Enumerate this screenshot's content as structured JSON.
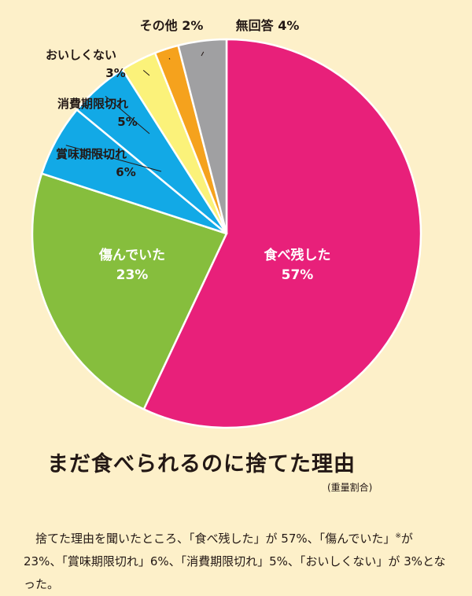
{
  "chart_data": {
    "type": "pie",
    "title": "まだ食べられるのに捨てた理由",
    "subtitle": "(重量割合)",
    "unit": "%",
    "slices": [
      {
        "label": "食べ残した",
        "value": 57,
        "value_label": "57%",
        "color": "#e8207a",
        "text_color": "#ffffff"
      },
      {
        "label": "傷んでいた",
        "value": 23,
        "value_label": "23%",
        "color": "#86be3d",
        "text_color": "#ffffff"
      },
      {
        "label": "賞味期限切れ",
        "value": 6,
        "value_label": "6%",
        "color": "#12a9e6",
        "text_color": "#231815"
      },
      {
        "label": "消費期限切れ",
        "value": 5,
        "value_label": "5%",
        "color": "#12a9e6",
        "text_color": "#231815"
      },
      {
        "label": "おいしくない",
        "value": 3,
        "value_label": "3%",
        "color": "#fbf27a",
        "text_color": "#231815"
      },
      {
        "label": "その他",
        "value": 2,
        "value_label": "2%",
        "color": "#f5a21d",
        "text_color": "#231815"
      },
      {
        "label": "無回答",
        "value": 4,
        "value_label": "4%",
        "color": "#a0a0a2",
        "text_color": "#231815"
      }
    ]
  },
  "description": {
    "part1": "捨てた理由を聞いたところ、「食べ残した」が 57%、「傷んでいた」",
    "note_mark": "※",
    "part2": "が 23%、「賞味期限切れ」6%、「消費期限切れ」5%、「おいしくない」が 3%となった。"
  }
}
